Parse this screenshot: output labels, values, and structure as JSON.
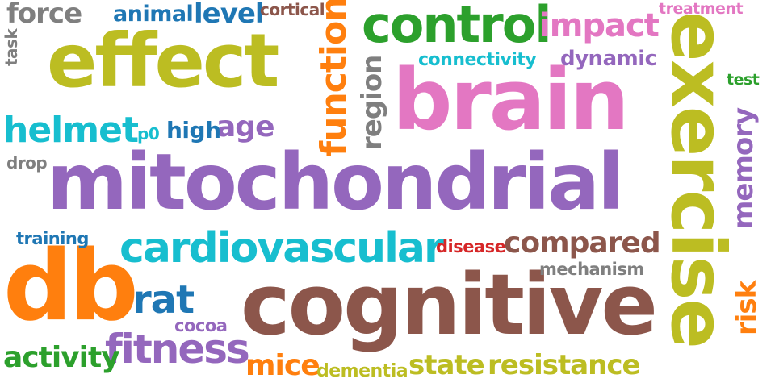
{
  "words": [
    {
      "text": "mitochondrial",
      "color": "#9467bd"
    },
    {
      "text": "cognitive",
      "color": "#8c564b"
    },
    {
      "text": "brain",
      "color": "#e377c2"
    },
    {
      "text": "effect",
      "color": "#bcbd22"
    },
    {
      "text": "exercise",
      "color": "#bcbd22"
    },
    {
      "text": "db",
      "color": "#ff7f0e"
    },
    {
      "text": "control",
      "color": "#2ca02c"
    },
    {
      "text": "cardiovascular",
      "color": "#17becf"
    },
    {
      "text": "function",
      "color": "#ff7f0e"
    },
    {
      "text": "fitness",
      "color": "#9467bd"
    },
    {
      "text": "helmet",
      "color": "#17becf"
    },
    {
      "text": "impact",
      "color": "#e377c2"
    },
    {
      "text": "compared",
      "color": "#8c564b"
    },
    {
      "text": "rat",
      "color": "#1f77b4"
    },
    {
      "text": "activity",
      "color": "#2ca02c"
    },
    {
      "text": "state",
      "color": "#bcbd22"
    },
    {
      "text": "resistance",
      "color": "#bcbd22"
    },
    {
      "text": "mice",
      "color": "#ff7f0e"
    },
    {
      "text": "memory",
      "color": "#9467bd"
    },
    {
      "text": "region",
      "color": "#7f7f7f"
    },
    {
      "text": "force",
      "color": "#7f7f7f"
    },
    {
      "text": "level",
      "color": "#1f77b4"
    },
    {
      "text": "animal",
      "color": "#1f77b4"
    },
    {
      "text": "age",
      "color": "#9467bd"
    },
    {
      "text": "risk",
      "color": "#ff7f0e"
    },
    {
      "text": "high",
      "color": "#1f77b4"
    },
    {
      "text": "dynamic",
      "color": "#9467bd"
    },
    {
      "text": "connectivity",
      "color": "#17becf"
    },
    {
      "text": "mechanism",
      "color": "#7f7f7f"
    },
    {
      "text": "dementia",
      "color": "#bcbd22"
    },
    {
      "text": "disease",
      "color": "#d62728"
    },
    {
      "text": "training",
      "color": "#1f77b4"
    },
    {
      "text": "cocoa",
      "color": "#9467bd"
    },
    {
      "text": "cortical",
      "color": "#8c564b"
    },
    {
      "text": "treatment",
      "color": "#e377c2"
    },
    {
      "text": "test",
      "color": "#2ca02c"
    },
    {
      "text": "p0",
      "color": "#17becf"
    },
    {
      "text": "drop",
      "color": "#7f7f7f"
    },
    {
      "text": "task",
      "color": "#7f7f7f"
    }
  ]
}
